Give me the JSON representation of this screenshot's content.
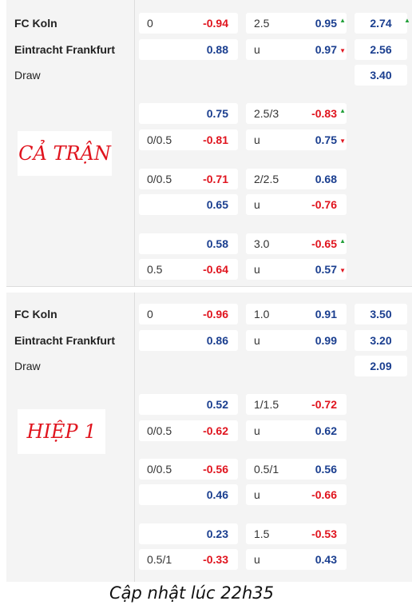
{
  "sections": [
    {
      "label": "CẢ TRẬN",
      "teams": [
        "FC Koln",
        "Eintracht Frankfurt",
        "Draw"
      ],
      "markets": [
        {
          "home": {
            "hcap": "0",
            "value": "-0.94"
          },
          "away": {
            "hcap": "",
            "value": "0.88"
          },
          "over": {
            "line": "2.5",
            "value": "0.95",
            "arrow": "▲"
          },
          "under": {
            "line": "u",
            "value": "0.97",
            "arrow": "▼"
          },
          "x12": [
            "2.74",
            "2.56",
            "3.40"
          ],
          "x12_arrow": "▲"
        },
        {
          "home": {
            "hcap": "",
            "value": "0.75"
          },
          "away": {
            "hcap": "0/0.5",
            "value": "-0.81"
          },
          "over": {
            "line": "2.5/3",
            "value": "-0.83",
            "arrow": "▲"
          },
          "under": {
            "line": "u",
            "value": "0.75",
            "arrow": "▼"
          }
        },
        {
          "home": {
            "hcap": "0/0.5",
            "value": "-0.71"
          },
          "away": {
            "hcap": "",
            "value": "0.65"
          },
          "over": {
            "line": "2/2.5",
            "value": "0.68",
            "arrow": ""
          },
          "under": {
            "line": "u",
            "value": "-0.76",
            "arrow": ""
          }
        },
        {
          "home": {
            "hcap": "",
            "value": "0.58"
          },
          "away": {
            "hcap": "0.5",
            "value": "-0.64"
          },
          "over": {
            "line": "3.0",
            "value": "-0.65",
            "arrow": "▲"
          },
          "under": {
            "line": "u",
            "value": "0.57",
            "arrow": "▼"
          }
        }
      ]
    },
    {
      "label": "HIỆP 1",
      "teams": [
        "FC Koln",
        "Eintracht Frankfurt",
        "Draw"
      ],
      "markets": [
        {
          "home": {
            "hcap": "0",
            "value": "-0.96"
          },
          "away": {
            "hcap": "",
            "value": "0.86"
          },
          "over": {
            "line": "1.0",
            "value": "0.91",
            "arrow": ""
          },
          "under": {
            "line": "u",
            "value": "0.99",
            "arrow": ""
          },
          "x12": [
            "3.50",
            "3.20",
            "2.09"
          ]
        },
        {
          "home": {
            "hcap": "",
            "value": "0.52"
          },
          "away": {
            "hcap": "0/0.5",
            "value": "-0.62"
          },
          "over": {
            "line": "1/1.5",
            "value": "-0.72",
            "arrow": ""
          },
          "under": {
            "line": "u",
            "value": "0.62",
            "arrow": ""
          }
        },
        {
          "home": {
            "hcap": "0/0.5",
            "value": "-0.56"
          },
          "away": {
            "hcap": "",
            "value": "0.46"
          },
          "over": {
            "line": "0.5/1",
            "value": "0.56",
            "arrow": ""
          },
          "under": {
            "line": "u",
            "value": "-0.66",
            "arrow": ""
          }
        },
        {
          "home": {
            "hcap": "",
            "value": "0.23"
          },
          "away": {
            "hcap": "0.5/1",
            "value": "-0.33"
          },
          "over": {
            "line": "1.5",
            "value": "-0.53",
            "arrow": ""
          },
          "under": {
            "line": "u",
            "value": "0.43",
            "arrow": ""
          }
        }
      ]
    }
  ],
  "footer": "Cập nhật lúc 22h35",
  "colors": {
    "positive": "#1a3e8f",
    "negative": "#e0141e",
    "up_arrow": "#22a03a",
    "down_arrow": "#e0141e",
    "label": "#e0141e"
  }
}
